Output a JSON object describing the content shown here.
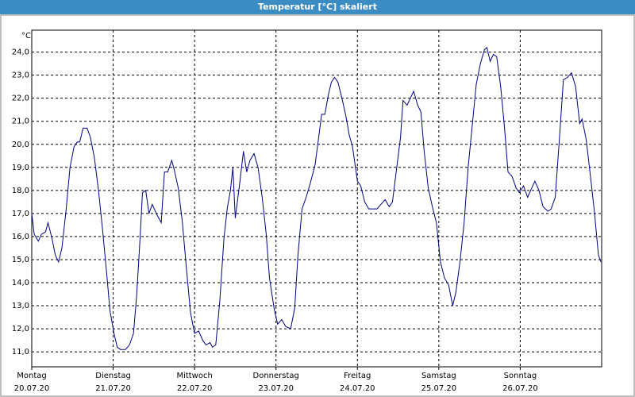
{
  "chart_data": {
    "type": "line",
    "title": "Temperatur [°C] skaliert",
    "y_unit": "°C",
    "color": "#000080",
    "grid": true,
    "xlim": [
      0,
      7
    ],
    "xticks": [
      {
        "value": 0,
        "label": "Montag"
      },
      {
        "value": 1,
        "label": "Dienstag"
      },
      {
        "value": 2,
        "label": "Mittwoch"
      },
      {
        "value": 3,
        "label": "Donnerstag"
      },
      {
        "value": 4,
        "label": "Freitag"
      },
      {
        "value": 5,
        "label": "Samstag"
      },
      {
        "value": 6,
        "label": "Sonntag"
      }
    ],
    "xtick_dates": [
      "20.07.20",
      "21.07.20",
      "22.07.20",
      "23.07.20",
      "24.07.20",
      "25.07.20",
      "26.07.20"
    ],
    "ylim": [
      10.35,
      24.95
    ],
    "yticks": [
      {
        "value": 11,
        "label": "11,0"
      },
      {
        "value": 12,
        "label": "12,0"
      },
      {
        "value": 13,
        "label": "13,0"
      },
      {
        "value": 14,
        "label": "14,0"
      },
      {
        "value": 15,
        "label": "15,0"
      },
      {
        "value": 16,
        "label": "16,0"
      },
      {
        "value": 17,
        "label": "17,0"
      },
      {
        "value": 18,
        "label": "18,0"
      },
      {
        "value": 19,
        "label": "19,0"
      },
      {
        "value": 20,
        "label": "20,0"
      },
      {
        "value": 21,
        "label": "21,0"
      },
      {
        "value": 22,
        "label": "22,0"
      },
      {
        "value": 23,
        "label": "23,0"
      },
      {
        "value": 24,
        "label": "24,0"
      }
    ],
    "x": [
      0,
      0.03,
      0.08,
      0.12,
      0.17,
      0.2,
      0.25,
      0.29,
      0.33,
      0.37,
      0.42,
      0.47,
      0.52,
      0.56,
      0.59,
      0.63,
      0.68,
      0.72,
      0.77,
      0.82,
      0.87,
      0.92,
      0.96,
      1.01,
      1.05,
      1.09,
      1.15,
      1.2,
      1.25,
      1.29,
      1.33,
      1.36,
      1.4,
      1.44,
      1.48,
      1.53,
      1.59,
      1.63,
      1.67,
      1.72,
      1.75,
      1.8,
      1.85,
      1.9,
      1.95,
      2.0,
      2.05,
      2.1,
      2.14,
      2.19,
      2.22,
      2.26,
      2.31,
      2.36,
      2.4,
      2.44,
      2.47,
      2.5,
      2.55,
      2.6,
      2.64,
      2.68,
      2.73,
      2.78,
      2.83,
      2.88,
      2.92,
      2.98,
      3.02,
      3.07,
      3.12,
      3.18,
      3.23,
      3.27,
      3.32,
      3.37,
      3.42,
      3.48,
      3.52,
      3.56,
      3.6,
      3.64,
      3.68,
      3.72,
      3.76,
      3.81,
      3.86,
      3.9,
      3.94,
      4.0,
      4.04,
      4.09,
      4.14,
      4.19,
      4.24,
      4.29,
      4.34,
      4.39,
      4.43,
      4.48,
      4.53,
      4.56,
      4.61,
      4.65,
      4.69,
      4.74,
      4.78,
      4.82,
      4.87,
      4.92,
      4.97,
      5.02,
      5.07,
      5.12,
      5.17,
      5.21,
      5.26,
      5.31,
      5.36,
      5.41,
      5.46,
      5.51,
      5.56,
      5.59,
      5.63,
      5.67,
      5.71,
      5.76,
      5.81,
      5.85,
      5.9,
      5.95,
      5.99,
      6.04,
      6.09,
      6.14,
      6.18,
      6.23,
      6.28,
      6.34,
      6.38,
      6.43,
      6.48,
      6.53,
      6.58,
      6.63,
      6.68,
      6.73,
      6.76,
      6.81,
      6.86,
      6.91,
      6.96,
      6.99
    ],
    "values": [
      17.0,
      16.1,
      15.8,
      16.1,
      16.2,
      16.6,
      15.9,
      15.2,
      14.9,
      15.5,
      17.1,
      19.0,
      19.9,
      20.1,
      20.1,
      20.7,
      20.7,
      20.3,
      19.4,
      18.0,
      16.3,
      14.4,
      12.8,
      11.8,
      11.2,
      11.1,
      11.1,
      11.3,
      11.8,
      13.5,
      15.9,
      17.9,
      18.0,
      17.0,
      17.4,
      17.0,
      16.6,
      18.8,
      18.8,
      19.3,
      18.9,
      18.1,
      16.6,
      14.6,
      12.7,
      11.8,
      11.9,
      11.5,
      11.3,
      11.4,
      11.2,
      11.3,
      13.2,
      15.9,
      17.2,
      18.0,
      19.0,
      16.8,
      18.2,
      19.7,
      18.8,
      19.3,
      19.6,
      19.0,
      17.7,
      16.1,
      14.2,
      12.8,
      12.2,
      12.4,
      12.1,
      12.0,
      12.9,
      15.2,
      17.2,
      17.7,
      18.3,
      19.1,
      20.2,
      21.3,
      21.3,
      22.1,
      22.7,
      22.9,
      22.7,
      22.0,
      21.2,
      20.4,
      19.9,
      18.4,
      18.2,
      17.5,
      17.2,
      17.2,
      17.2,
      17.4,
      17.6,
      17.3,
      17.5,
      18.9,
      20.3,
      21.9,
      21.7,
      22.0,
      22.3,
      21.7,
      21.4,
      19.7,
      18.1,
      17.3,
      16.6,
      14.9,
      14.2,
      13.9,
      13.0,
      13.6,
      14.9,
      16.6,
      19.0,
      20.8,
      22.6,
      23.5,
      24.1,
      24.2,
      23.6,
      23.9,
      23.8,
      22.5,
      20.6,
      18.8,
      18.6,
      18.1,
      17.9,
      18.2,
      17.7,
      18.1,
      18.4,
      18.0,
      17.3,
      17.1,
      17.2,
      17.7,
      20.2,
      22.8,
      22.9,
      23.1,
      22.5,
      20.9,
      21.1,
      20.2,
      18.7,
      17.1,
      15.2,
      14.9
    ]
  }
}
